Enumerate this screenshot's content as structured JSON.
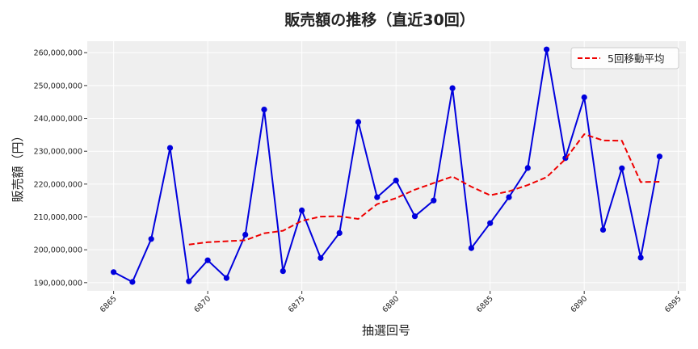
{
  "chart_data": {
    "type": "line",
    "title": "販売額の推移（直近30回）",
    "xlabel": "抽選回号",
    "ylabel": "販売額（円）",
    "xlim": [
      6863.6,
      6895.4
    ],
    "ylim": [
      187500000,
      263500000
    ],
    "x_ticks": [
      6865,
      6870,
      6875,
      6880,
      6885,
      6890,
      6895
    ],
    "y_ticks": [
      190000000,
      200000000,
      210000000,
      220000000,
      230000000,
      240000000,
      250000000,
      260000000
    ],
    "y_tick_labels": [
      "190,000,000",
      "200,000,000",
      "210,000,000",
      "220,000,000",
      "230,000,000",
      "240,000,000",
      "250,000,000",
      "260,000,000"
    ],
    "grid": true,
    "legend": {
      "position": "top-right",
      "entries": [
        "5回移動平均"
      ]
    },
    "x": [
      6865,
      6866,
      6867,
      6868,
      6869,
      6870,
      6871,
      6872,
      6873,
      6874,
      6875,
      6876,
      6877,
      6878,
      6879,
      6880,
      6881,
      6882,
      6883,
      6884,
      6885,
      6886,
      6887,
      6888,
      6889,
      6890,
      6891,
      6892,
      6893,
      6894
    ],
    "series": [
      {
        "color": "#0000dd",
        "style": "solid",
        "marker": "circle",
        "values": [
          193200000,
          190200000,
          203300000,
          231000000,
          190400000,
          196800000,
          191400000,
          204600000,
          242700000,
          193500000,
          212000000,
          197500000,
          205100000,
          238900000,
          216000000,
          221100000,
          210200000,
          215000000,
          249200000,
          200500000,
          208100000,
          216000000,
          224900000,
          261000000,
          227900000,
          246400000,
          206100000,
          224800000,
          197600000,
          228400000
        ]
      },
      {
        "name": "5回移動平均",
        "color": "#ee0000",
        "style": "dashed",
        "marker": "none",
        "values": [
          null,
          null,
          null,
          null,
          201600000,
          202300000,
          202600000,
          202900000,
          205000000,
          205800000,
          208800000,
          210100000,
          210200000,
          209400000,
          213900000,
          215700000,
          218300000,
          220300000,
          222300000,
          219200000,
          216600000,
          217800000,
          219700000,
          222100000,
          227600000,
          235200000,
          233300000,
          233200000,
          220600000,
          220700000
        ]
      }
    ]
  }
}
